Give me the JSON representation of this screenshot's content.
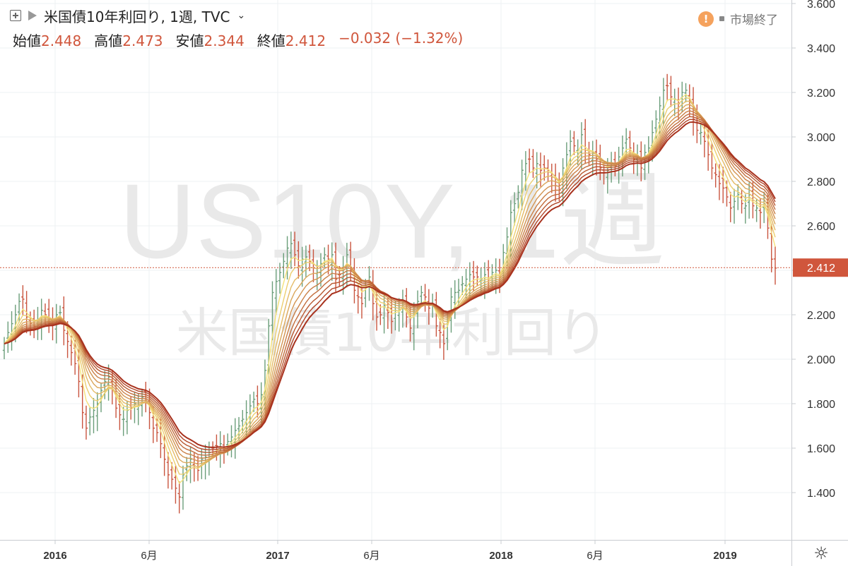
{
  "header": {
    "title": "米国債10年利回り, 1週, TVC",
    "ohlc": [
      {
        "label": "始値",
        "value": "2.448"
      },
      {
        "label": "高値",
        "value": "2.473"
      },
      {
        "label": "安値",
        "value": "2.344"
      },
      {
        "label": "終値",
        "value": "2.412"
      }
    ],
    "change": "−0.032 (−1.32%)",
    "market_status": "市場終了",
    "warn_glyph": "!"
  },
  "watermark": {
    "symbol": "US10Y, 1週",
    "name": "米国債10年利回り"
  },
  "icons": {
    "add": "plus-square-icon",
    "flag": "flag-icon",
    "dropdown": "chevron-down-icon",
    "warning": "warning-icon",
    "settings": "gear-icon"
  },
  "colors": {
    "up": "#6b9e7a",
    "down": "#c9553f",
    "ribbon_fast": "#f5e27a",
    "ribbon_slow": "#a8321e",
    "last_price_bg": "#d0563c",
    "grid": "#eef0f3"
  },
  "chart_data": {
    "type": "ohlc",
    "title": "米国債10年利回り",
    "interval": "1週",
    "y_ticks": [
      "1.400",
      "1.600",
      "1.800",
      "2.000",
      "2.200",
      "2.400",
      "2.600",
      "2.800",
      "3.000",
      "3.200",
      "3.400",
      "3.600"
    ],
    "ylim": [
      1.2,
      3.62
    ],
    "x_ticks": [
      "2016",
      "6月",
      "2017",
      "6月",
      "2018",
      "6月",
      "2019"
    ],
    "last_price_label": "2.412",
    "last_price": 2.412,
    "series_close": [
      2.07,
      2.12,
      2.16,
      2.2,
      2.26,
      2.27,
      2.19,
      2.16,
      2.15,
      2.18,
      2.22,
      2.2,
      2.18,
      2.16,
      2.2,
      2.21,
      2.13,
      2.08,
      2.03,
      1.98,
      1.9,
      1.76,
      1.69,
      1.74,
      1.77,
      1.8,
      1.86,
      1.9,
      1.92,
      1.86,
      1.78,
      1.75,
      1.73,
      1.77,
      1.78,
      1.8,
      1.79,
      1.83,
      1.82,
      1.76,
      1.69,
      1.67,
      1.62,
      1.55,
      1.48,
      1.46,
      1.42,
      1.38,
      1.48,
      1.52,
      1.55,
      1.52,
      1.5,
      1.55,
      1.56,
      1.58,
      1.6,
      1.61,
      1.62,
      1.59,
      1.63,
      1.65,
      1.68,
      1.7,
      1.73,
      1.76,
      1.79,
      1.82,
      1.8,
      1.84,
      1.95,
      2.15,
      2.3,
      2.35,
      2.39,
      2.44,
      2.5,
      2.52,
      2.47,
      2.42,
      2.45,
      2.46,
      2.44,
      2.41,
      2.39,
      2.43,
      2.47,
      2.45,
      2.47,
      2.36,
      2.38,
      2.41,
      2.47,
      2.4,
      2.31,
      2.28,
      2.25,
      2.33,
      2.37,
      2.25,
      2.19,
      2.2,
      2.24,
      2.21,
      2.17,
      2.22,
      2.22,
      2.26,
      2.19,
      2.14,
      2.2,
      2.26,
      2.3,
      2.28,
      2.23,
      2.25,
      2.15,
      2.12,
      2.07,
      2.17,
      2.28,
      2.3,
      2.31,
      2.34,
      2.36,
      2.38,
      2.37,
      2.37,
      2.36,
      2.38,
      2.36,
      2.39,
      2.4,
      2.37,
      2.48,
      2.55,
      2.66,
      2.7,
      2.75,
      2.85,
      2.88,
      2.9,
      2.86,
      2.88,
      2.85,
      2.86,
      2.85,
      2.82,
      2.78,
      2.76,
      2.86,
      2.92,
      2.98,
      2.96,
      2.94,
      3.01,
      2.94,
      2.92,
      2.93,
      2.9,
      2.86,
      2.84,
      2.85,
      2.88,
      2.87,
      2.91,
      2.95,
      2.99,
      2.95,
      2.9,
      2.91,
      2.86,
      2.93,
      2.95,
      3.02,
      3.08,
      3.14,
      3.21,
      3.23,
      3.18,
      3.17,
      3.15,
      3.2,
      3.21,
      3.16,
      3.08,
      3.03,
      3.02,
      2.98,
      2.92,
      2.86,
      2.83,
      2.79,
      2.77,
      2.73,
      2.68,
      2.71,
      2.74,
      2.7,
      2.69,
      2.74,
      2.69,
      2.68,
      2.66,
      2.7,
      2.59,
      2.45,
      2.41
    ],
    "ribbon": {
      "type": "line",
      "series": [
        {
          "period": 4
        },
        {
          "period": 6
        },
        {
          "period": 8
        },
        {
          "period": 10
        },
        {
          "period": 12
        },
        {
          "period": 14
        },
        {
          "period": 16
        },
        {
          "period": 18
        },
        {
          "period": 20
        },
        {
          "period": 22
        }
      ]
    }
  }
}
